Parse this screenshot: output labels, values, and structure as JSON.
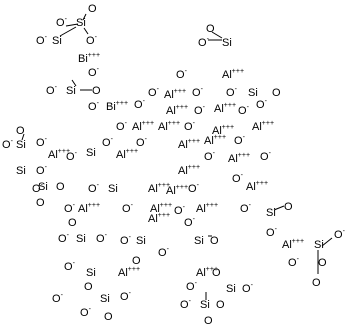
{
  "labels": [
    {
      "symbol": "O"
    },
    {
      "symbol": "O",
      "charge": "-"
    },
    {
      "symbol": "Si"
    },
    {
      "symbol": "O",
      "charge": "-"
    },
    {
      "symbol": "Si"
    },
    {
      "symbol": "O",
      "charge": "-"
    },
    {
      "symbol": "Bi",
      "charge": "+++"
    },
    {
      "symbol": "O"
    },
    {
      "symbol": "O",
      "charge": "-"
    },
    {
      "symbol": "Si"
    },
    {
      "symbol": "O",
      "charge": "-"
    },
    {
      "symbol": "O",
      "charge": "-"
    },
    {
      "symbol": "Al",
      "charge": "+++"
    },
    {
      "symbol": "O",
      "charge": "-"
    },
    {
      "symbol": "Si"
    },
    {
      "symbol": "O"
    },
    {
      "symbol": "O",
      "charge": "-"
    },
    {
      "symbol": "Al",
      "charge": "+++"
    },
    {
      "symbol": "O",
      "charge": "-"
    },
    {
      "symbol": "O",
      "charge": "-"
    },
    {
      "symbol": "Si"
    },
    {
      "symbol": "O"
    },
    {
      "symbol": "O",
      "charge": "-"
    },
    {
      "symbol": "Bi",
      "charge": "+++"
    },
    {
      "symbol": "O",
      "charge": "-"
    },
    {
      "symbol": "Al",
      "charge": "+++"
    },
    {
      "symbol": "O",
      "charge": "-"
    },
    {
      "symbol": "Al",
      "charge": "+++"
    },
    {
      "symbol": "O",
      "charge": "-"
    },
    {
      "symbol": "O",
      "charge": "-"
    },
    {
      "symbol": "O",
      "charge": "-"
    },
    {
      "symbol": "Al",
      "charge": "+++"
    },
    {
      "symbol": "Al",
      "charge": "+++"
    },
    {
      "symbol": "O",
      "charge": "-"
    },
    {
      "symbol": "Al",
      "charge": "+++"
    },
    {
      "symbol": "Al",
      "charge": "+++"
    },
    {
      "symbol": "O"
    },
    {
      "symbol": "O",
      "charge": "-"
    },
    {
      "symbol": "Si"
    },
    {
      "symbol": "O",
      "charge": "-"
    },
    {
      "symbol": "Al",
      "charge": "+++"
    },
    {
      "symbol": "O",
      "charge": "-"
    },
    {
      "symbol": "Si"
    },
    {
      "symbol": "O",
      "charge": "-"
    },
    {
      "symbol": "Al",
      "charge": "+++"
    },
    {
      "symbol": "O",
      "charge": "-"
    },
    {
      "symbol": "Al",
      "charge": "+++"
    },
    {
      "symbol": "Al",
      "charge": "+++"
    },
    {
      "symbol": "O",
      "charge": "-"
    },
    {
      "symbol": "O",
      "charge": "-"
    },
    {
      "symbol": "Al",
      "charge": "+++"
    },
    {
      "symbol": "O",
      "charge": "-"
    },
    {
      "symbol": "Si"
    },
    {
      "symbol": "O",
      "charge": "-"
    },
    {
      "symbol": "O",
      "charge": "-"
    },
    {
      "symbol": "Si"
    },
    {
      "symbol": "O"
    },
    {
      "symbol": "Al",
      "charge": "+++"
    },
    {
      "symbol": "O",
      "charge": "-"
    },
    {
      "symbol": "O",
      "charge": "-"
    },
    {
      "symbol": "Si"
    },
    {
      "symbol": "Al",
      "charge": "+++"
    },
    {
      "symbol": "Al",
      "charge": "+++"
    },
    {
      "symbol": "O",
      "charge": "-"
    },
    {
      "symbol": "Al",
      "charge": "+++"
    },
    {
      "symbol": "O"
    },
    {
      "symbol": "O",
      "charge": "-"
    },
    {
      "symbol": "Al",
      "charge": "+++"
    },
    {
      "symbol": "O",
      "charge": "-"
    },
    {
      "symbol": "Al",
      "charge": "+++"
    },
    {
      "symbol": "Al",
      "charge": "+++"
    },
    {
      "symbol": "Al",
      "charge": "+++"
    },
    {
      "symbol": "O",
      "charge": "-"
    },
    {
      "symbol": "O",
      "charge": "-"
    },
    {
      "symbol": "Si"
    },
    {
      "symbol": "O"
    },
    {
      "symbol": "O",
      "charge": "-"
    },
    {
      "symbol": "O"
    },
    {
      "symbol": "O",
      "charge": "-"
    },
    {
      "symbol": "Si"
    },
    {
      "symbol": "O",
      "charge": "-"
    },
    {
      "symbol": "O",
      "charge": "-"
    },
    {
      "symbol": "Si"
    },
    {
      "symbol": "O"
    },
    {
      "symbol": "O",
      "charge": "-"
    },
    {
      "symbol": "O",
      "charge": "-"
    },
    {
      "symbol": "Si"
    },
    {
      "symbol": "O"
    },
    {
      "symbol": "Al",
      "charge": "+++"
    },
    {
      "symbol": "Si"
    },
    {
      "symbol": "O",
      "charge": "-"
    },
    {
      "symbol": "O",
      "charge": "-"
    },
    {
      "symbol": "O"
    },
    {
      "symbol": "O"
    },
    {
      "symbol": "O",
      "charge": "-"
    },
    {
      "symbol": "Si"
    },
    {
      "symbol": "O"
    },
    {
      "symbol": "Al",
      "charge": "+++"
    },
    {
      "symbol": "O",
      "charge": "-"
    },
    {
      "symbol": "Si"
    },
    {
      "symbol": "O",
      "charge": "-"
    },
    {
      "symbol": "O",
      "charge": "-"
    },
    {
      "symbol": "O"
    },
    {
      "symbol": "Al",
      "charge": "+++"
    },
    {
      "symbol": "O"
    },
    {
      "symbol": "O",
      "charge": "-"
    },
    {
      "symbol": "Si"
    },
    {
      "symbol": "O",
      "charge": "-"
    },
    {
      "symbol": "O",
      "charge": "-"
    },
    {
      "symbol": "Si"
    },
    {
      "symbol": "O"
    },
    {
      "symbol": "O"
    }
  ]
}
